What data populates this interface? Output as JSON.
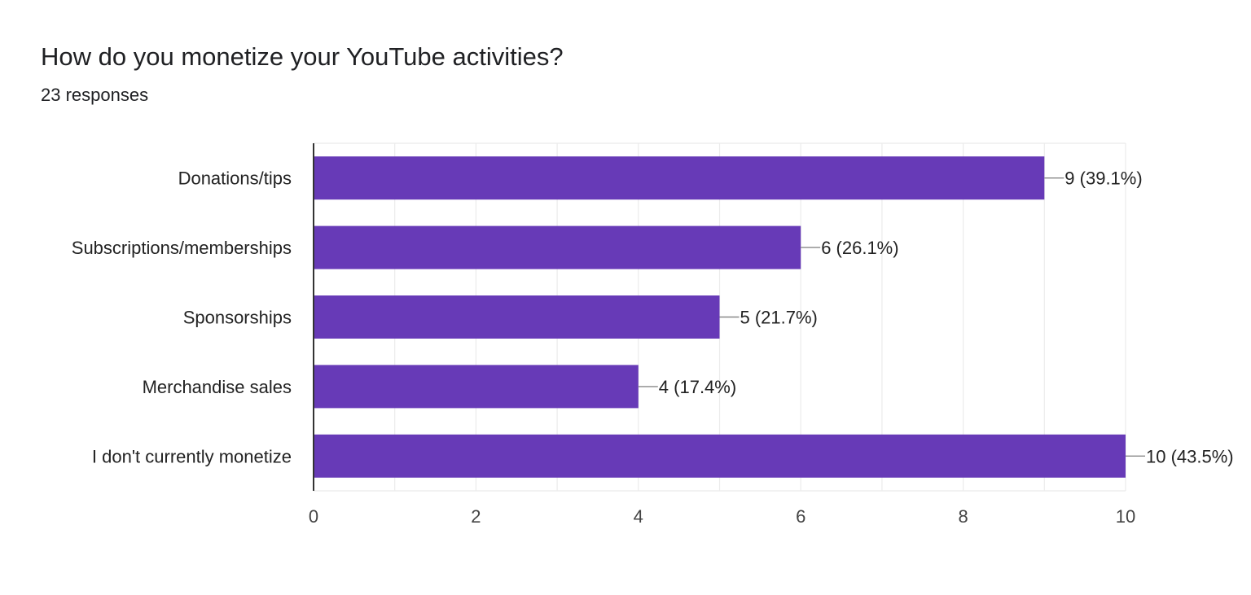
{
  "question": {
    "title": "How do you monetize your YouTube activities?",
    "responses": "23 responses"
  },
  "colors": {
    "bar": "#673ab7",
    "grid": "#ebebeb",
    "axis": "#333333",
    "text": "#222222",
    "tick_text": "#444444"
  },
  "chart_data": {
    "type": "bar",
    "orientation": "horizontal",
    "categories": [
      "Donations/tips",
      "Subscriptions/memberships",
      "Sponsorships",
      "Merchandise sales",
      "I don't currently monetize"
    ],
    "values": [
      9,
      6,
      5,
      4,
      10
    ],
    "data_labels": [
      "9 (39.1%)",
      "6 (26.1%)",
      "5 (21.7%)",
      "4 (17.4%)",
      "10 (43.5%)"
    ],
    "xlim": [
      0,
      10
    ],
    "xticks": [
      0,
      2,
      4,
      6,
      8,
      10
    ],
    "xtick_labels": [
      "0",
      "2",
      "4",
      "6",
      "8",
      "10"
    ],
    "grid": true,
    "legend": "none"
  }
}
